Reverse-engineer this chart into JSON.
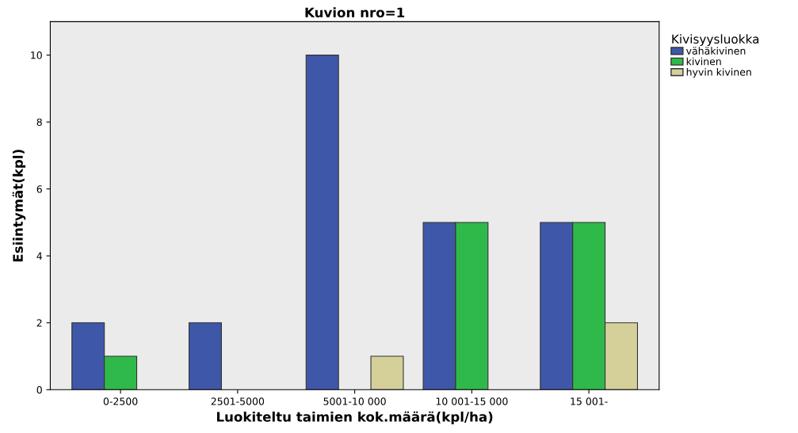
{
  "chart_data": {
    "type": "bar",
    "title": "Kuvion nro=1",
    "xlabel": "Luokiteltu taimien kok.määrä(kpl/ha)",
    "ylabel": "Esiintymät(kpl)",
    "legend_title": "Kivisyysluokka",
    "categories": [
      "0-2500",
      "2501-5000",
      "5001-10 000",
      "10 001-15 000",
      "15 001-"
    ],
    "series": [
      {
        "name": "vähäkivinen",
        "color": "#3f57a8",
        "values": [
          2,
          2,
          10,
          5,
          5
        ]
      },
      {
        "name": "kivinen",
        "color": "#2fb94a",
        "values": [
          1,
          null,
          null,
          5,
          5
        ]
      },
      {
        "name": "hyvin kivinen",
        "color": "#d5d09a",
        "values": [
          null,
          null,
          1,
          null,
          2
        ]
      }
    ],
    "ylim": [
      0,
      11
    ],
    "yticks": [
      0,
      2,
      4,
      6,
      8,
      10
    ],
    "grid": false,
    "legend": "right"
  }
}
